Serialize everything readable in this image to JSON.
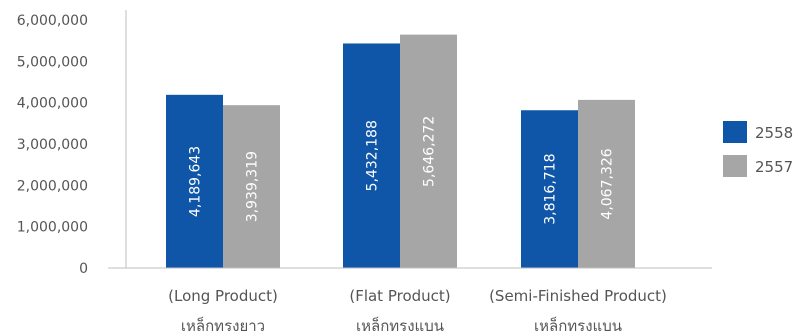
{
  "chart_data": {
    "type": "bar",
    "title": "",
    "xlabel": "",
    "ylabel": "",
    "ylim": [
      0,
      6000000
    ],
    "yticks": [
      "0",
      "1,000,000",
      "2,000,000",
      "3,000,000",
      "4,000,000",
      "5,000,000",
      "6,000,000"
    ],
    "ytick_values": [
      0,
      1000000,
      2000000,
      3000000,
      4000000,
      5000000,
      6000000
    ],
    "categories": [
      {
        "line1": "(Long Product)",
        "line2": "เหล็กทรงยาว"
      },
      {
        "line1": "(Flat Product)",
        "line2": "เหล็กทรงแบน"
      },
      {
        "line1": "(Semi-Finished Product)",
        "line2": "เหล็กทรงแบน"
      }
    ],
    "series": [
      {
        "name": "2558",
        "color": "#0f56a8",
        "values": [
          4189643,
          5432188,
          3816718
        ],
        "labels": [
          "4,189,643",
          "5,432,188",
          "3,816,718"
        ]
      },
      {
        "name": "2557",
        "color": "#a6a6a6",
        "values": [
          3939319,
          5646272,
          4067326
        ],
        "labels": [
          "3,939,319",
          "5,646,272",
          "4,067,326"
        ]
      }
    ],
    "grid": false,
    "legend_position": "right"
  }
}
